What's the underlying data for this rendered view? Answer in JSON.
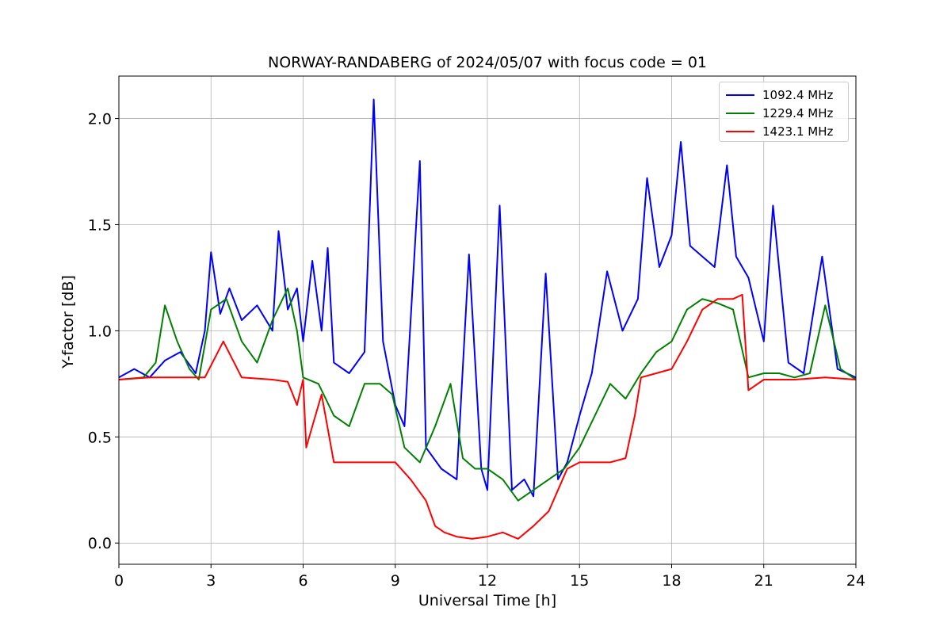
{
  "chart_data": {
    "type": "line",
    "title": "NORWAY-RANDABERG of 2024/05/07 with focus code = 01",
    "xlabel": "Universal Time [h]",
    "ylabel": "Y-factor [dB]",
    "xlim": [
      0,
      24
    ],
    "ylim": [
      -0.1,
      2.2
    ],
    "xticks": [
      0,
      3,
      6,
      9,
      12,
      15,
      18,
      21,
      24
    ],
    "xtick_labels": [
      "0",
      "3",
      "6",
      "9",
      "12",
      "15",
      "18",
      "21",
      "24"
    ],
    "yticks": [
      0.0,
      0.5,
      1.0,
      1.5,
      2.0
    ],
    "ytick_labels": [
      "0.0",
      "0.5",
      "1.0",
      "1.5",
      "2.0"
    ],
    "grid": true,
    "legend_position": "top-right",
    "series": [
      {
        "name": "1092.4 MHz",
        "color": "#0000ff",
        "x": [
          0,
          0.5,
          1,
          1.5,
          2,
          2.5,
          2.8,
          3,
          3.3,
          3.6,
          4,
          4.5,
          5,
          5.2,
          5.5,
          5.8,
          6,
          6.3,
          6.6,
          6.8,
          7,
          7.5,
          8,
          8.3,
          8.6,
          9,
          9.3,
          9.8,
          10,
          10.5,
          11,
          11.4,
          11.8,
          12,
          12.4,
          12.8,
          13.2,
          13.5,
          13.9,
          14.3,
          14.6,
          15,
          15.4,
          15.9,
          16.4,
          16.9,
          17.2,
          17.6,
          18,
          18.3,
          18.6,
          19,
          19.4,
          19.8,
          20.1,
          20.5,
          21,
          21.3,
          21.8,
          22.3,
          22.9,
          23.4,
          24
        ],
        "y": [
          0.78,
          0.82,
          0.78,
          0.86,
          0.9,
          0.8,
          1.0,
          1.37,
          1.08,
          1.2,
          1.05,
          1.12,
          1.0,
          1.47,
          1.1,
          1.2,
          0.95,
          1.33,
          1.0,
          1.39,
          0.85,
          0.8,
          0.9,
          2.09,
          0.95,
          0.65,
          0.55,
          1.8,
          0.45,
          0.35,
          0.3,
          1.36,
          0.35,
          0.25,
          1.59,
          0.25,
          0.3,
          0.22,
          1.27,
          0.3,
          0.38,
          0.6,
          0.8,
          1.28,
          1.0,
          1.15,
          1.72,
          1.3,
          1.45,
          1.89,
          1.4,
          1.35,
          1.3,
          1.78,
          1.35,
          1.25,
          0.95,
          1.59,
          0.85,
          0.8,
          1.35,
          0.82,
          0.78
        ]
      },
      {
        "name": "1229.4 MHz",
        "color": "#008000",
        "x": [
          0,
          0.8,
          1.2,
          1.5,
          1.9,
          2.3,
          2.6,
          3,
          3.5,
          4,
          4.5,
          5,
          5.5,
          5.8,
          6,
          6.5,
          7,
          7.5,
          8,
          8.5,
          8.9,
          9.3,
          9.8,
          10.3,
          10.8,
          11.2,
          11.6,
          12,
          12.5,
          13,
          13.5,
          14,
          14.5,
          15,
          15.5,
          16,
          16.5,
          17,
          17.5,
          18,
          18.5,
          19,
          19.5,
          20,
          20.5,
          21,
          21.5,
          22,
          22.5,
          23,
          23.5,
          24
        ],
        "y": [
          0.77,
          0.78,
          0.85,
          1.12,
          0.95,
          0.82,
          0.77,
          1.1,
          1.15,
          0.95,
          0.85,
          1.05,
          1.2,
          1.0,
          0.78,
          0.75,
          0.6,
          0.55,
          0.75,
          0.75,
          0.7,
          0.45,
          0.38,
          0.55,
          0.75,
          0.4,
          0.35,
          0.35,
          0.3,
          0.2,
          0.25,
          0.3,
          0.35,
          0.45,
          0.6,
          0.75,
          0.68,
          0.8,
          0.9,
          0.95,
          1.1,
          1.15,
          1.13,
          1.1,
          0.78,
          0.8,
          0.8,
          0.78,
          0.8,
          1.12,
          0.82,
          0.77
        ]
      },
      {
        "name": "1423.1 MHz",
        "color": "#ff0000",
        "x": [
          0,
          1,
          2,
          2.8,
          3.4,
          4,
          5,
          5.5,
          5.8,
          6,
          6.1,
          6.3,
          6.6,
          7,
          7.5,
          8,
          8.5,
          9,
          9.5,
          10,
          10.3,
          10.6,
          11,
          11.5,
          12,
          12.5,
          13,
          13.5,
          14,
          14.3,
          14.6,
          15,
          15.5,
          16,
          16.5,
          16.8,
          17,
          17.5,
          18,
          18.5,
          19,
          19.5,
          20,
          20.3,
          20.5,
          21,
          22,
          23,
          24
        ],
        "y": [
          0.77,
          0.78,
          0.78,
          0.78,
          0.95,
          0.78,
          0.77,
          0.76,
          0.65,
          0.77,
          0.45,
          0.55,
          0.7,
          0.38,
          0.38,
          0.38,
          0.38,
          0.38,
          0.3,
          0.2,
          0.08,
          0.05,
          0.03,
          0.02,
          0.03,
          0.05,
          0.02,
          0.08,
          0.15,
          0.25,
          0.35,
          0.38,
          0.38,
          0.38,
          0.4,
          0.6,
          0.78,
          0.8,
          0.82,
          0.95,
          1.1,
          1.15,
          1.15,
          1.17,
          0.72,
          0.77,
          0.77,
          0.78,
          0.77
        ]
      }
    ]
  }
}
